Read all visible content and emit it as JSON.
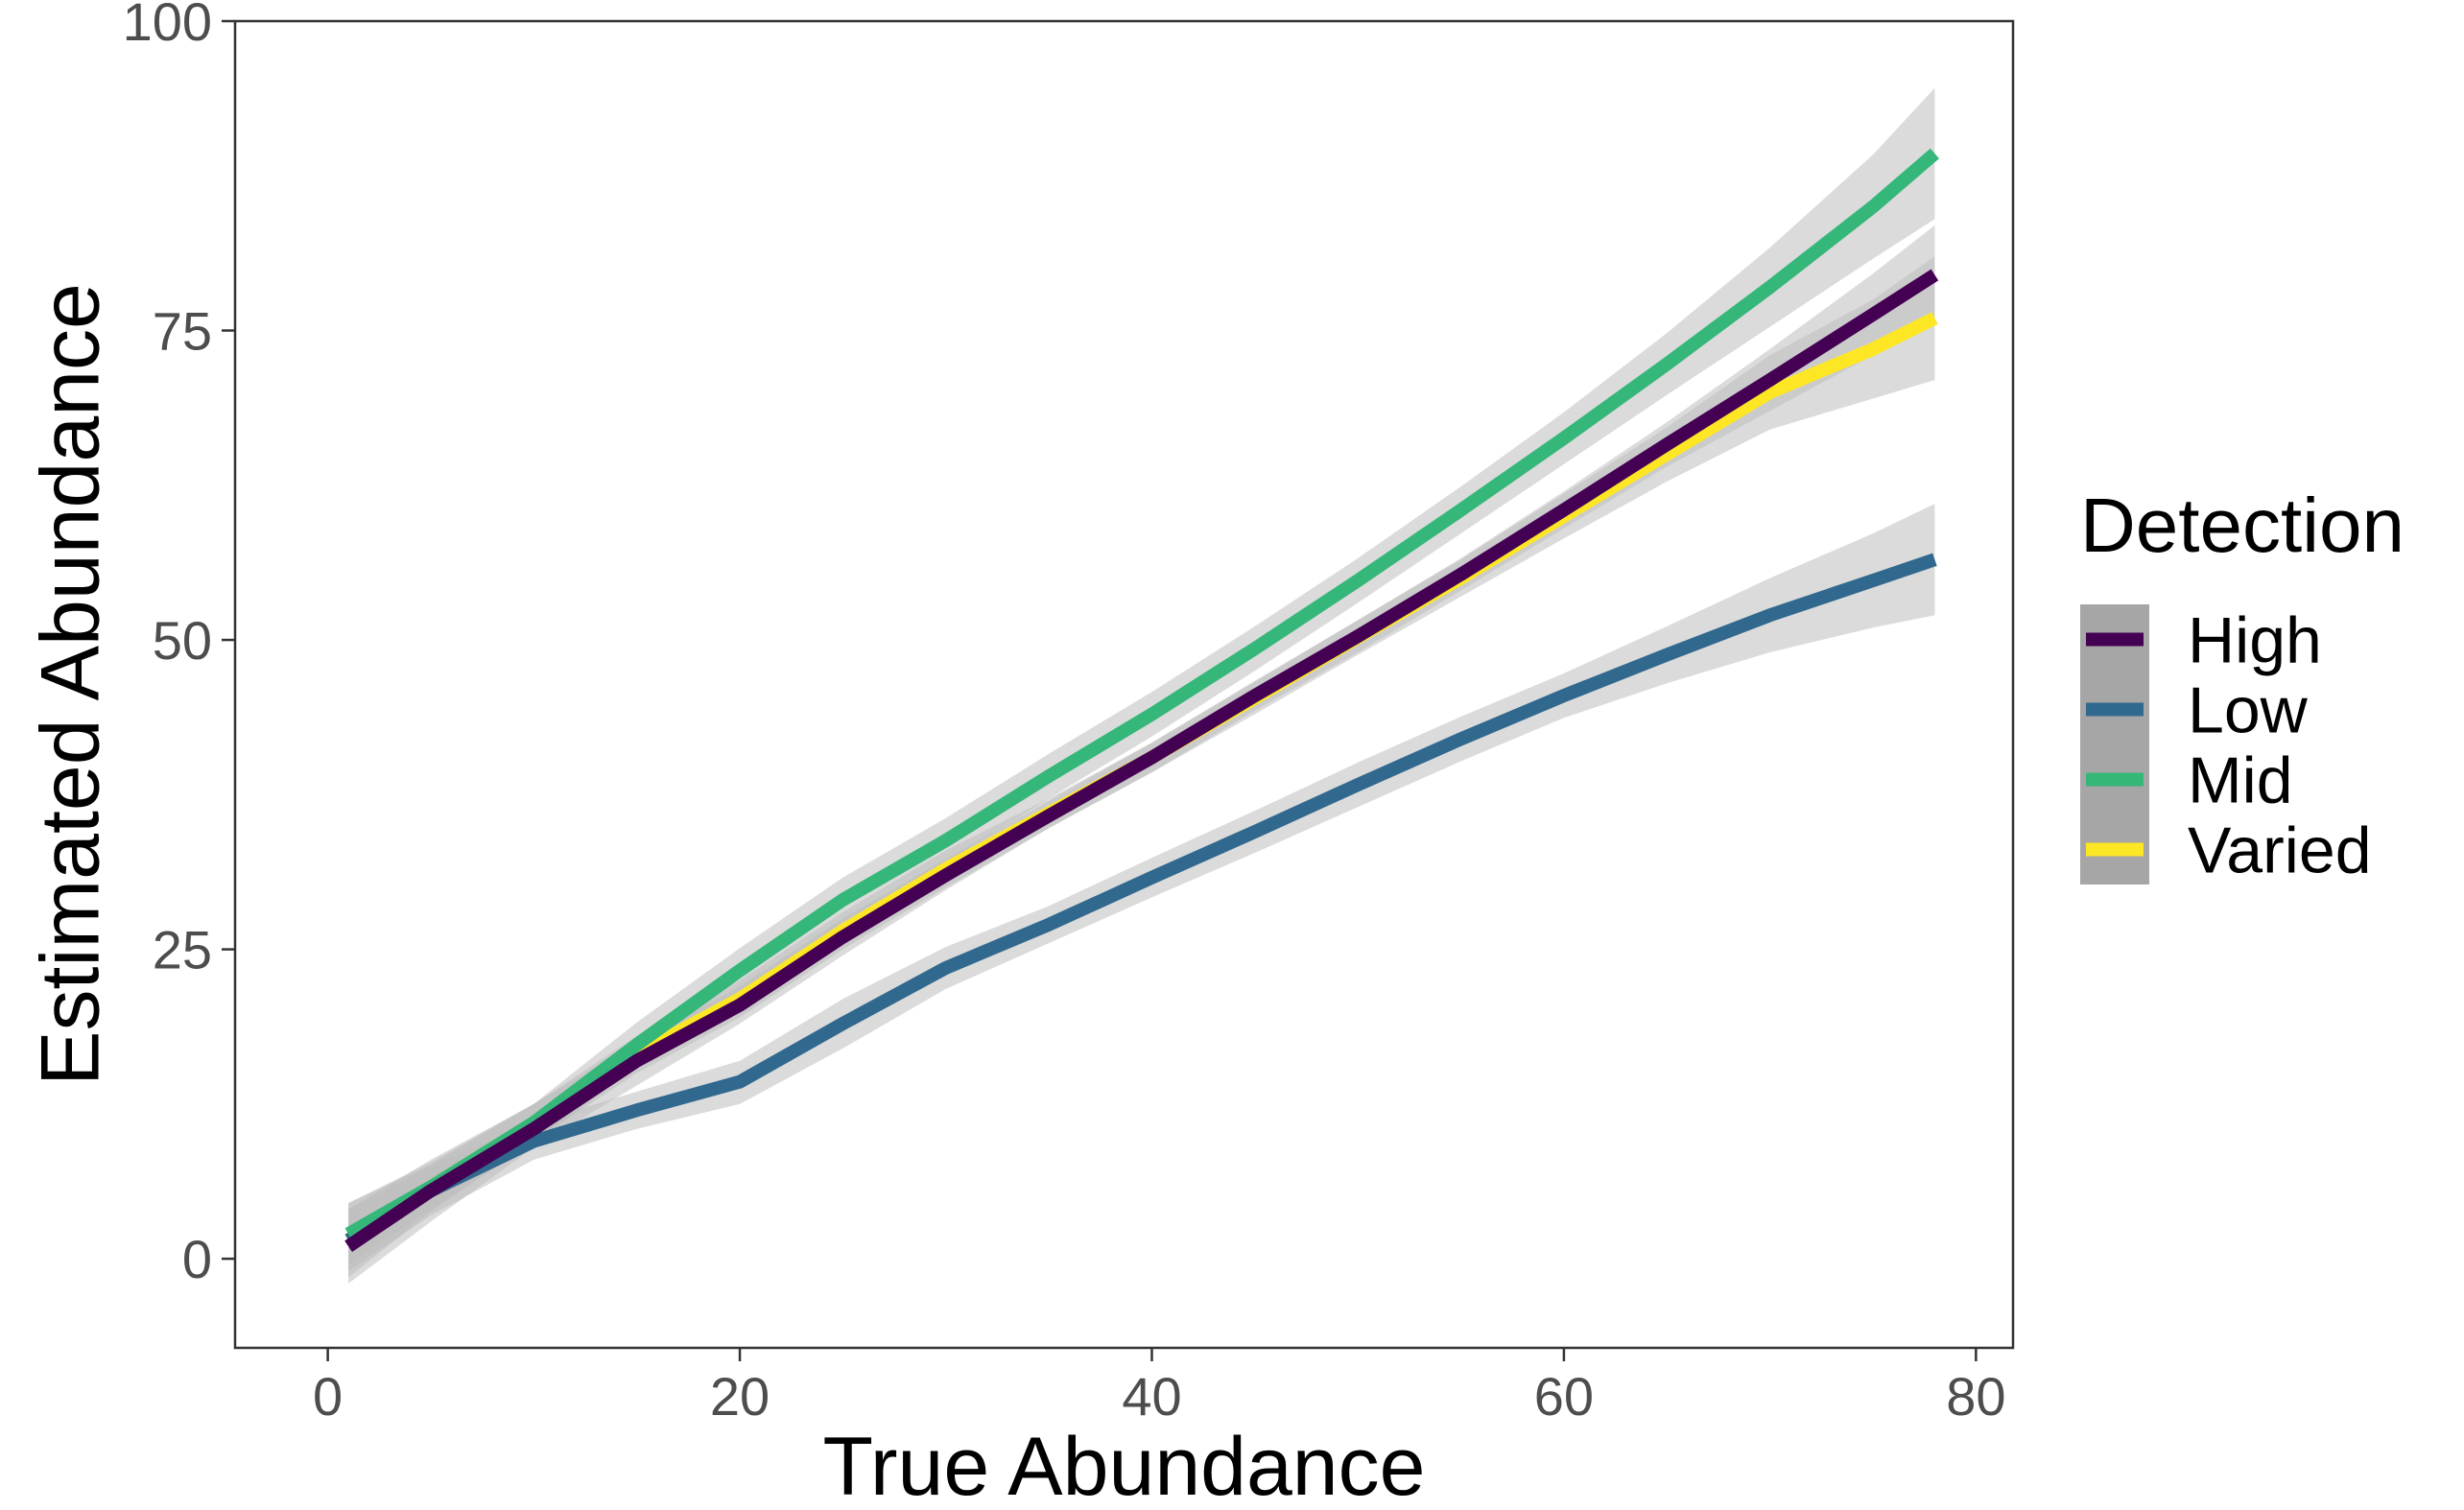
{
  "chart_data": {
    "type": "line",
    "xlabel": "True Abundance",
    "ylabel": "Estimated Abundance",
    "xlim": [
      -4.5,
      81.8
    ],
    "ylim": [
      -7.2,
      100
    ],
    "x_ticks": [
      0,
      20,
      40,
      60,
      80
    ],
    "y_ticks": [
      0,
      25,
      50,
      75,
      100
    ],
    "grid": false,
    "confidence_band_color": "#bdbdbd",
    "legend": {
      "title": "Detection",
      "placement": "right"
    },
    "series": [
      {
        "name": "High",
        "color": "#440154",
        "x": [
          1,
          5,
          10,
          15,
          20,
          25,
          30,
          35,
          40,
          45,
          50,
          55,
          60,
          65,
          70,
          75,
          78
        ],
        "y": [
          1,
          5.5,
          10.5,
          16,
          20.5,
          26,
          31,
          35.8,
          40.5,
          45.5,
          50.3,
          55.3,
          60.5,
          65.8,
          71,
          76.3,
          79.5
        ],
        "lower": [
          -2,
          3,
          9,
          14,
          19,
          24.5,
          29.8,
          34.8,
          39.3,
          44.3,
          49,
          54,
          59,
          64,
          68.5,
          73,
          75.5
        ],
        "upper": [
          4,
          8,
          12.5,
          17.5,
          22,
          27.5,
          32.3,
          37,
          41.7,
          46.7,
          51.6,
          56.6,
          62,
          67.6,
          73.5,
          79.6,
          83.5
        ]
      },
      {
        "name": "Low",
        "color": "#31688e",
        "x": [
          1,
          5,
          10,
          15,
          20,
          25,
          30,
          35,
          40,
          45,
          50,
          55,
          60,
          65,
          70,
          75,
          78
        ],
        "y": [
          1.5,
          5.5,
          9.5,
          12,
          14.3,
          19,
          23.5,
          27,
          30.8,
          34.5,
          38.3,
          42,
          45.5,
          48.8,
          52,
          54.8,
          56.5
        ],
        "lower": [
          -1,
          3.5,
          8,
          10.5,
          12.5,
          17,
          21.8,
          25.5,
          29.2,
          32.8,
          36.5,
          40.2,
          43.7,
          46.5,
          49,
          51,
          52
        ],
        "upper": [
          4,
          7.5,
          11,
          13.5,
          16,
          21,
          25.2,
          28.5,
          32.4,
          36.2,
          40.1,
          43.8,
          47.3,
          51.1,
          55,
          58.6,
          61
        ]
      },
      {
        "name": "Mid",
        "color": "#35b779",
        "x": [
          1,
          5,
          10,
          15,
          20,
          25,
          30,
          35,
          40,
          45,
          50,
          55,
          60,
          65,
          70,
          75,
          78
        ],
        "y": [
          2,
          5.8,
          11,
          17.3,
          23.3,
          29,
          33.8,
          39,
          44,
          49.3,
          54.8,
          60.5,
          66.3,
          72.3,
          78.5,
          85,
          89.3
        ],
        "lower": [
          -0.5,
          4,
          9.5,
          15.5,
          21.5,
          27.2,
          32,
          37.2,
          42.2,
          47.5,
          53,
          58.6,
          64.2,
          69.8,
          75.3,
          80.8,
          84
        ],
        "upper": [
          4.5,
          7.6,
          12.5,
          19.1,
          25.1,
          30.8,
          35.6,
          40.8,
          45.8,
          51.1,
          56.6,
          62.4,
          68.4,
          74.8,
          81.7,
          89.2,
          94.6
        ]
      },
      {
        "name": "Varied",
        "color": "#fde725",
        "x": [
          1,
          5,
          10,
          15,
          20,
          25,
          30,
          35,
          40,
          45,
          50,
          55,
          60,
          65,
          70,
          75,
          78
        ],
        "y": [
          1.5,
          5.8,
          11,
          16.5,
          21,
          26.5,
          31.5,
          36,
          40.5,
          45.3,
          50.2,
          55,
          60,
          65,
          70,
          73.5,
          76
        ],
        "lower": [
          -1.5,
          3.8,
          9.5,
          15,
          19.5,
          25,
          30,
          34.8,
          39.3,
          44,
          48.8,
          53.5,
          58.2,
          62.8,
          67,
          69.5,
          71
        ],
        "upper": [
          4.5,
          7.8,
          12.5,
          18,
          22.5,
          28,
          33,
          37.2,
          41.7,
          46.6,
          51.6,
          56.5,
          61.8,
          67.2,
          73,
          77.5,
          81
        ]
      }
    ]
  }
}
